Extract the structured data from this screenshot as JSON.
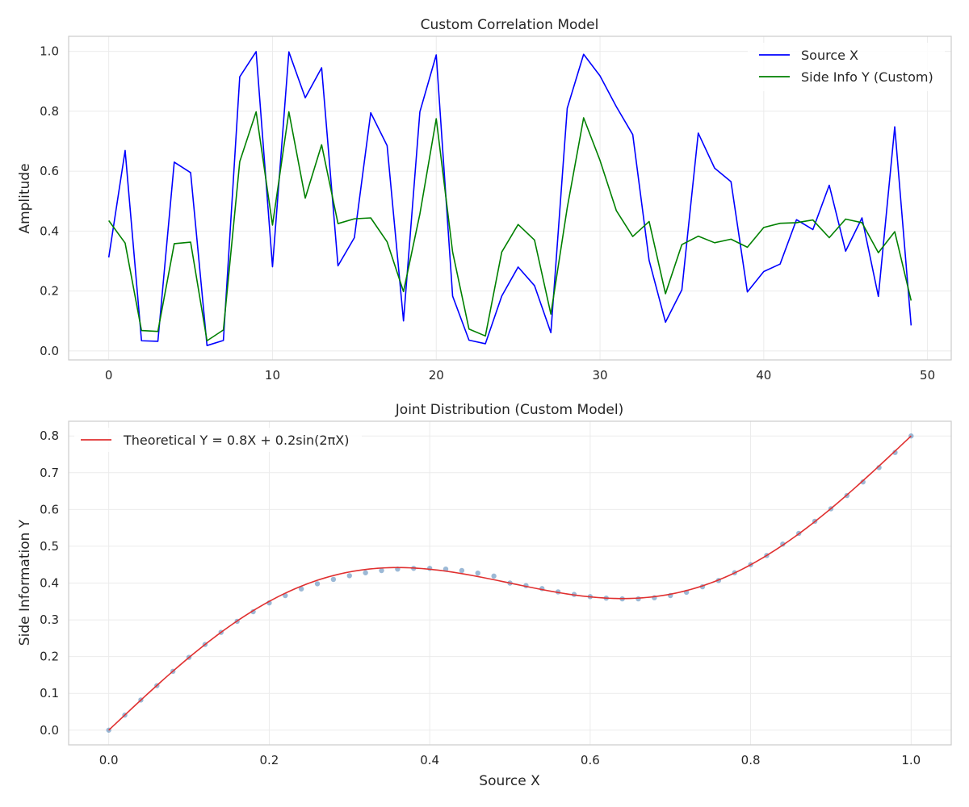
{
  "chart_data": [
    {
      "type": "line",
      "title": "Custom Correlation Model",
      "xlabel": "",
      "ylabel": "Amplitude",
      "xlim": [
        -2.45,
        51.45
      ],
      "ylim": [
        -0.03,
        1.05
      ],
      "xticks": [
        0,
        10,
        20,
        30,
        40,
        50
      ],
      "xtick_labels": [
        "0",
        "10",
        "20",
        "30",
        "40",
        "50"
      ],
      "yticks": [
        0.0,
        0.2,
        0.4,
        0.6,
        0.8,
        1.0
      ],
      "ytick_labels": [
        "0.0",
        "0.2",
        "0.4",
        "0.6",
        "0.8",
        "1.0"
      ],
      "grid": true,
      "legend_position": "top-right",
      "x": [
        0,
        1,
        2,
        3,
        4,
        5,
        6,
        7,
        8,
        9,
        10,
        11,
        12,
        13,
        14,
        15,
        16,
        17,
        18,
        19,
        20,
        21,
        22,
        23,
        24,
        25,
        26,
        27,
        28,
        29,
        30,
        31,
        32,
        33,
        34,
        35,
        36,
        37,
        38,
        39,
        40,
        41,
        42,
        43,
        44,
        45,
        46,
        47,
        48,
        49
      ],
      "series": [
        {
          "name": "Source X",
          "color": "#0000ff",
          "values": [
            0.312,
            0.669,
            0.034,
            0.032,
            0.63,
            0.595,
            0.018,
            0.035,
            0.915,
            0.999,
            0.281,
            0.998,
            0.845,
            0.945,
            0.284,
            0.378,
            0.795,
            0.685,
            0.1,
            0.798,
            0.988,
            0.183,
            0.036,
            0.024,
            0.183,
            0.28,
            0.218,
            0.061,
            0.81,
            0.99,
            0.918,
            0.815,
            0.722,
            0.302,
            0.096,
            0.204,
            0.727,
            0.61,
            0.565,
            0.197,
            0.265,
            0.29,
            0.438,
            0.405,
            0.553,
            0.333,
            0.444,
            0.182,
            0.748,
            0.085
          ]
        },
        {
          "name": "Side Info Y (Custom)",
          "color": "#008000",
          "values": [
            0.435,
            0.36,
            0.068,
            0.065,
            0.358,
            0.363,
            0.034,
            0.07,
            0.632,
            0.798,
            0.42,
            0.798,
            0.51,
            0.688,
            0.425,
            0.441,
            0.444,
            0.364,
            0.198,
            0.457,
            0.775,
            0.33,
            0.073,
            0.05,
            0.33,
            0.422,
            0.37,
            0.123,
            0.478,
            0.778,
            0.636,
            0.468,
            0.382,
            0.432,
            0.191,
            0.355,
            0.383,
            0.361,
            0.373,
            0.346,
            0.412,
            0.426,
            0.428,
            0.437,
            0.378,
            0.44,
            0.428,
            0.328,
            0.398,
            0.168
          ]
        }
      ]
    },
    {
      "type": "scatter",
      "title": "Joint Distribution (Custom Model)",
      "xlabel": "Source X",
      "ylabel": "Side Information Y",
      "xlim": [
        -0.05,
        1.05
      ],
      "ylim": [
        -0.04,
        0.84
      ],
      "xticks": [
        0.0,
        0.2,
        0.4,
        0.6,
        0.8,
        1.0
      ],
      "xtick_labels": [
        "0.0",
        "0.2",
        "0.4",
        "0.6",
        "0.8",
        "1.0"
      ],
      "yticks": [
        0.0,
        0.1,
        0.2,
        0.3,
        0.4,
        0.5,
        0.6,
        0.7,
        0.8
      ],
      "ytick_labels": [
        "0.0",
        "0.1",
        "0.2",
        "0.3",
        "0.4",
        "0.5",
        "0.6",
        "0.7",
        "0.8"
      ],
      "grid": true,
      "legend_position": "top-left",
      "scatter_points": {
        "color": "#4a7fb5",
        "x": [
          0.0,
          0.02,
          0.04,
          0.06,
          0.08,
          0.1,
          0.12,
          0.14,
          0.16,
          0.18,
          0.2,
          0.22,
          0.24,
          0.26,
          0.28,
          0.3,
          0.32,
          0.34,
          0.36,
          0.38,
          0.4,
          0.42,
          0.44,
          0.46,
          0.48,
          0.5,
          0.52,
          0.54,
          0.56,
          0.58,
          0.6,
          0.62,
          0.64,
          0.66,
          0.68,
          0.7,
          0.72,
          0.74,
          0.76,
          0.78,
          0.8,
          0.82,
          0.84,
          0.86,
          0.88,
          0.9,
          0.92,
          0.94,
          0.96,
          0.98,
          1.0
        ],
        "y": [
          0.0,
          0.041,
          0.082,
          0.121,
          0.16,
          0.198,
          0.233,
          0.266,
          0.296,
          0.322,
          0.346,
          0.366,
          0.384,
          0.398,
          0.41,
          0.42,
          0.428,
          0.434,
          0.438,
          0.44,
          0.44,
          0.438,
          0.434,
          0.427,
          0.419,
          0.4,
          0.393,
          0.385,
          0.376,
          0.369,
          0.363,
          0.359,
          0.357,
          0.357,
          0.36,
          0.366,
          0.375,
          0.39,
          0.407,
          0.428,
          0.45,
          0.475,
          0.506,
          0.535,
          0.568,
          0.602,
          0.638,
          0.675,
          0.714,
          0.755,
          0.8
        ]
      },
      "series": [
        {
          "name": "Theoretical Y = 0.8X + 0.2sin(2πX)",
          "color": "#e03030",
          "function": "0.8X + 0.2sin(2πX)",
          "x_range": [
            0,
            1
          ]
        }
      ]
    }
  ]
}
